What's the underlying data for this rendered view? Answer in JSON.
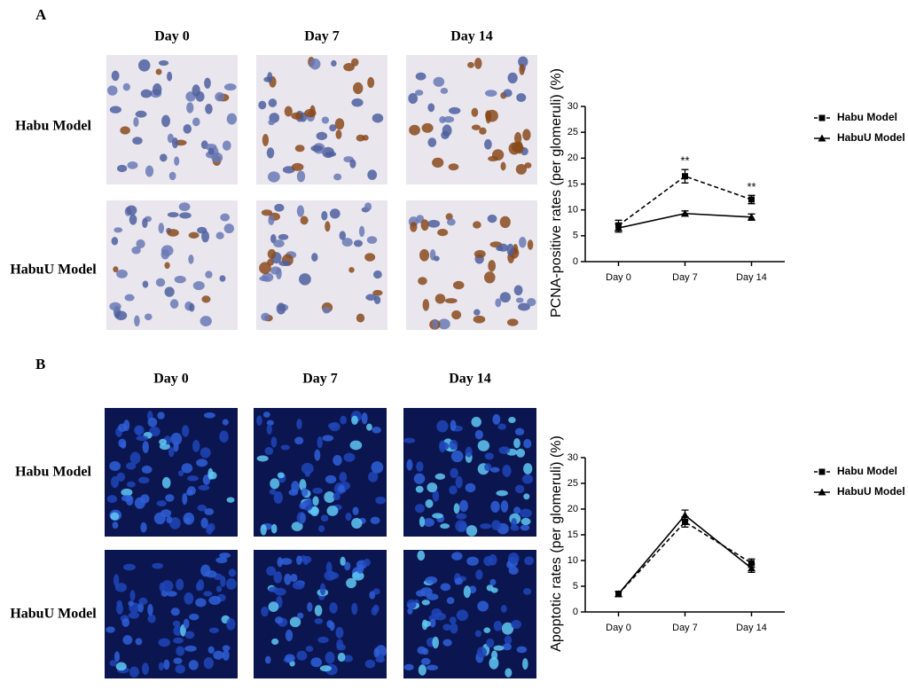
{
  "panels": [
    {
      "label": "A",
      "columns": [
        "Day 0",
        "Day 7",
        "Day 14"
      ],
      "rows": [
        "Habu Model",
        "HabuU Model"
      ]
    },
    {
      "label": "B",
      "columns": [
        "Day 0",
        "Day 7",
        "Day 14"
      ],
      "rows": [
        "Habu Model",
        "HabuU Model"
      ]
    }
  ],
  "chart_data": [
    {
      "type": "line",
      "y_label": "PCNA-positive rates (per glomeruli) (%)",
      "categories": [
        "Day 0",
        "Day 7",
        "Day 14"
      ],
      "ylim": [
        0,
        30
      ],
      "yticks": [
        0,
        5,
        10,
        15,
        20,
        25,
        30
      ],
      "series": [
        {
          "name": "Habu Model",
          "color": "#000000",
          "dashed": true,
          "marker": "square",
          "values": [
            7,
            16.5,
            12
          ],
          "errors": [
            1,
            1.3,
            0.8
          ],
          "annotations": [
            null,
            "**",
            "**"
          ]
        },
        {
          "name": "HabuU Model",
          "color": "#000000",
          "dashed": false,
          "marker": "triangle",
          "values": [
            6.5,
            9.3,
            8.6
          ],
          "errors": [
            0.8,
            0.5,
            0.6
          ]
        }
      ]
    },
    {
      "type": "line",
      "y_label": "Apoptotic rates (per glomeruli) (%)",
      "categories": [
        "Day 0",
        "Day 7",
        "Day 14"
      ],
      "ylim": [
        0,
        30
      ],
      "yticks": [
        0,
        5,
        10,
        15,
        20,
        25,
        30
      ],
      "series": [
        {
          "name": "Habu Model",
          "color": "#000000",
          "dashed": true,
          "marker": "square",
          "values": [
            3.5,
            17.5,
            9.5
          ],
          "errors": [
            0.5,
            1,
            0.8
          ]
        },
        {
          "name": "HabuU Model",
          "color": "#000000",
          "dashed": false,
          "marker": "triangle",
          "values": [
            3.5,
            18.8,
            8.5
          ],
          "errors": [
            0.5,
            1,
            0.8
          ]
        }
      ]
    }
  ]
}
